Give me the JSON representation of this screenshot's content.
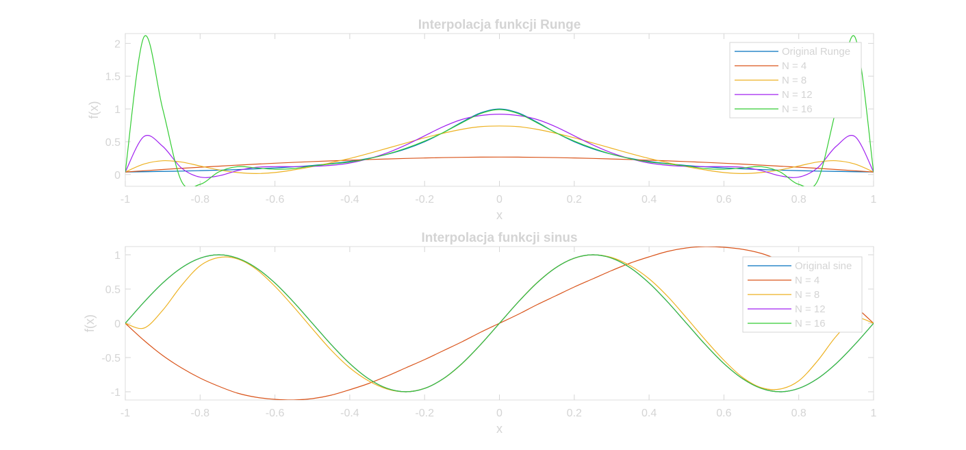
{
  "colors": {
    "original": "#0072BD",
    "n4": "#D95319",
    "n8": "#EDB120",
    "n12": "#A020F0",
    "n16": "#33CC33"
  },
  "chart_data": [
    {
      "type": "line",
      "title": "Interpolacja funkcji Runge",
      "xlabel": "x",
      "ylabel": "f(x)",
      "xlim": [
        -1,
        1
      ],
      "ylim": [
        -0.18,
        2.15
      ],
      "xticks": [
        -1,
        -0.8,
        -0.6,
        -0.4,
        -0.2,
        0,
        0.2,
        0.4,
        0.6,
        0.8,
        1
      ],
      "yticks": [
        0,
        0.5,
        1,
        1.5,
        2
      ],
      "grid": false,
      "legend_position": "top-right",
      "x": [
        -1,
        -0.95,
        -0.9,
        -0.85,
        -0.8,
        -0.75,
        -0.7,
        -0.65,
        -0.6,
        -0.55,
        -0.5,
        -0.45,
        -0.4,
        -0.35,
        -0.3,
        -0.25,
        -0.2,
        -0.15,
        -0.1,
        -0.05,
        0,
        0.05,
        0.1,
        0.15,
        0.2,
        0.25,
        0.3,
        0.35,
        0.4,
        0.45,
        0.5,
        0.55,
        0.6,
        0.65,
        0.7,
        0.75,
        0.8,
        0.85,
        0.9,
        0.95,
        1
      ],
      "series": [
        {
          "name": "Original Runge",
          "color_key": "original",
          "values": [
            0.038,
            0.042,
            0.047,
            0.052,
            0.059,
            0.066,
            0.075,
            0.086,
            0.1,
            0.117,
            0.138,
            0.165,
            0.2,
            0.246,
            0.308,
            0.39,
            0.5,
            0.64,
            0.8,
            0.941,
            1,
            0.941,
            0.8,
            0.64,
            0.5,
            0.39,
            0.308,
            0.246,
            0.2,
            0.165,
            0.138,
            0.117,
            0.1,
            0.086,
            0.075,
            0.066,
            0.059,
            0.052,
            0.047,
            0.042,
            0.038
          ]
        },
        {
          "name": "N = 4",
          "color_key": "n4",
          "values": [
            0.038,
            0.057,
            0.076,
            0.094,
            0.111,
            0.127,
            0.143,
            0.158,
            0.172,
            0.185,
            0.197,
            0.208,
            0.218,
            0.228,
            0.237,
            0.245,
            0.252,
            0.258,
            0.262,
            0.265,
            0.266,
            0.265,
            0.262,
            0.258,
            0.252,
            0.245,
            0.237,
            0.228,
            0.218,
            0.208,
            0.197,
            0.185,
            0.172,
            0.158,
            0.143,
            0.127,
            0.111,
            0.094,
            0.076,
            0.057,
            0.038
          ]
        },
        {
          "name": "N = 8",
          "color_key": "n8",
          "values": [
            0.038,
            0.16,
            0.21,
            0.19,
            0.13,
            0.07,
            0.03,
            0.015,
            0.03,
            0.07,
            0.12,
            0.18,
            0.245,
            0.32,
            0.4,
            0.48,
            0.56,
            0.63,
            0.69,
            0.73,
            0.74,
            0.73,
            0.69,
            0.63,
            0.56,
            0.48,
            0.4,
            0.32,
            0.245,
            0.18,
            0.12,
            0.07,
            0.03,
            0.015,
            0.03,
            0.07,
            0.13,
            0.19,
            0.21,
            0.16,
            0.038
          ]
        },
        {
          "name": "N = 12",
          "color_key": "n12",
          "values": [
            0.038,
            0.58,
            0.43,
            0.1,
            -0.04,
            -0.02,
            0.06,
            0.11,
            0.12,
            0.12,
            0.125,
            0.14,
            0.175,
            0.24,
            0.33,
            0.45,
            0.59,
            0.73,
            0.84,
            0.9,
            0.92,
            0.9,
            0.84,
            0.73,
            0.59,
            0.45,
            0.33,
            0.24,
            0.175,
            0.14,
            0.125,
            0.12,
            0.12,
            0.11,
            0.06,
            -0.02,
            -0.04,
            0.1,
            0.43,
            0.58,
            0.038
          ]
        },
        {
          "name": "N = 16",
          "color_key": "n16",
          "values": [
            0.038,
            2.1,
            1.0,
            -0.1,
            -0.15,
            0.04,
            0.12,
            0.1,
            0.08,
            0.09,
            0.13,
            0.16,
            0.19,
            0.24,
            0.31,
            0.4,
            0.51,
            0.64,
            0.79,
            0.93,
            0.99,
            0.93,
            0.79,
            0.64,
            0.51,
            0.4,
            0.31,
            0.24,
            0.19,
            0.16,
            0.13,
            0.09,
            0.08,
            0.1,
            0.12,
            0.04,
            -0.15,
            -0.1,
            1.0,
            2.1,
            0.038
          ]
        }
      ]
    },
    {
      "type": "line",
      "title": "Interpolacja funkcji sinus",
      "xlabel": "x",
      "ylabel": "f(x)",
      "xlim": [
        -1,
        1
      ],
      "ylim": [
        -1.12,
        1.12
      ],
      "xticks": [
        -1,
        -0.8,
        -0.6,
        -0.4,
        -0.2,
        0,
        0.2,
        0.4,
        0.6,
        0.8,
        1
      ],
      "yticks": [
        -1,
        -0.5,
        0,
        0.5,
        1
      ],
      "grid": false,
      "legend_position": "top-right",
      "x": [
        -1,
        -0.95,
        -0.9,
        -0.85,
        -0.8,
        -0.75,
        -0.7,
        -0.65,
        -0.6,
        -0.55,
        -0.5,
        -0.45,
        -0.4,
        -0.35,
        -0.3,
        -0.25,
        -0.2,
        -0.15,
        -0.1,
        -0.05,
        0,
        0.05,
        0.1,
        0.15,
        0.2,
        0.25,
        0.3,
        0.35,
        0.4,
        0.45,
        0.5,
        0.55,
        0.6,
        0.65,
        0.7,
        0.75,
        0.8,
        0.85,
        0.9,
        0.95,
        1
      ],
      "series": [
        {
          "name": "Original sine",
          "color_key": "original",
          "values": [
            0,
            0.309,
            0.588,
            0.809,
            0.951,
            1,
            0.951,
            0.809,
            0.588,
            0.309,
            0,
            -0.309,
            -0.588,
            -0.809,
            -0.951,
            -1,
            -0.951,
            -0.809,
            -0.588,
            -0.309,
            0,
            0.309,
            0.588,
            0.809,
            0.951,
            1,
            0.951,
            0.809,
            0.588,
            0.309,
            0,
            -0.309,
            -0.588,
            -0.809,
            -0.951,
            -1,
            -0.951,
            -0.809,
            -0.588,
            -0.309,
            0
          ]
        },
        {
          "name": "N = 4",
          "color_key": "n4",
          "values": [
            0,
            -0.25,
            -0.47,
            -0.65,
            -0.8,
            -0.92,
            -1.02,
            -1.08,
            -1.11,
            -1.12,
            -1.1,
            -1.05,
            -0.97,
            -0.88,
            -0.77,
            -0.65,
            -0.53,
            -0.4,
            -0.27,
            -0.13,
            0,
            0.13,
            0.27,
            0.4,
            0.53,
            0.65,
            0.77,
            0.88,
            0.97,
            1.05,
            1.1,
            1.12,
            1.11,
            1.08,
            1.02,
            0.92,
            0.8,
            0.65,
            0.47,
            0.25,
            0
          ]
        },
        {
          "name": "N = 8",
          "color_key": "n8",
          "values": [
            0,
            -0.07,
            0.19,
            0.55,
            0.84,
            0.96,
            0.94,
            0.79,
            0.54,
            0.24,
            -0.08,
            -0.39,
            -0.65,
            -0.84,
            -0.96,
            -1,
            -0.95,
            -0.81,
            -0.59,
            -0.31,
            0,
            0.31,
            0.59,
            0.81,
            0.95,
            1,
            0.96,
            0.84,
            0.65,
            0.39,
            0.08,
            -0.24,
            -0.54,
            -0.79,
            -0.94,
            -0.96,
            -0.84,
            -0.55,
            -0.19,
            0.07,
            0
          ]
        },
        {
          "name": "N = 12",
          "color_key": "n12",
          "values": [
            0,
            0.309,
            0.588,
            0.809,
            0.951,
            1,
            0.951,
            0.809,
            0.588,
            0.309,
            0,
            -0.309,
            -0.588,
            -0.809,
            -0.951,
            -1,
            -0.951,
            -0.809,
            -0.588,
            -0.309,
            0,
            0.309,
            0.588,
            0.809,
            0.951,
            1,
            0.951,
            0.809,
            0.588,
            0.309,
            0,
            -0.309,
            -0.588,
            -0.809,
            -0.951,
            -1,
            -0.951,
            -0.809,
            -0.588,
            -0.309,
            0
          ]
        },
        {
          "name": "N = 16",
          "color_key": "n16",
          "values": [
            0,
            0.309,
            0.588,
            0.809,
            0.951,
            1,
            0.951,
            0.809,
            0.588,
            0.309,
            0,
            -0.309,
            -0.588,
            -0.809,
            -0.951,
            -1,
            -0.951,
            -0.809,
            -0.588,
            -0.309,
            0,
            0.309,
            0.588,
            0.809,
            0.951,
            1,
            0.951,
            0.809,
            0.588,
            0.309,
            0,
            -0.309,
            -0.588,
            -0.809,
            -0.951,
            -1,
            -0.951,
            -0.809,
            -0.588,
            -0.309,
            0
          ]
        }
      ]
    }
  ]
}
